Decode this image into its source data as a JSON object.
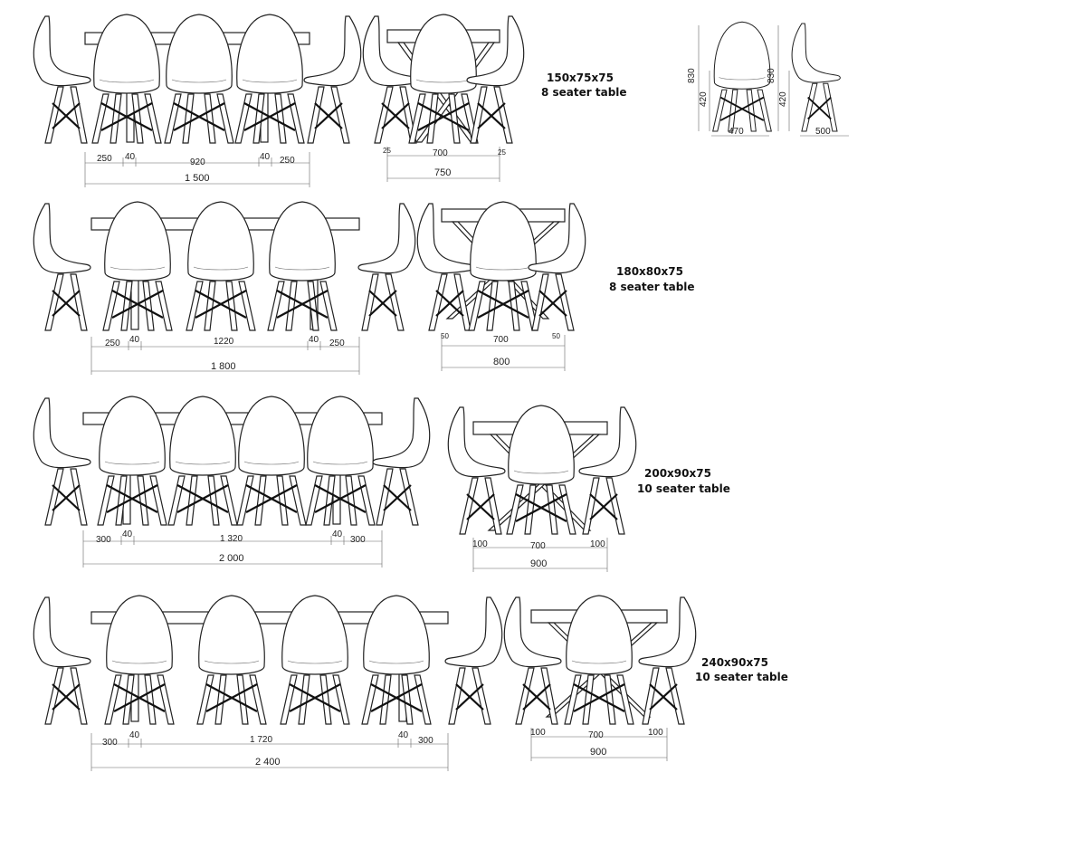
{
  "captions": [
    {
      "size": "150x75x75",
      "seats": "8 seater table"
    },
    {
      "size": "180x80x75",
      "seats": "8 seater table"
    },
    {
      "size": "200x90x75",
      "seats": "10 seater table"
    },
    {
      "size": "240x90x75",
      "seats": "10 seater table"
    }
  ],
  "chair_dims": {
    "height": "830",
    "seat_height": "420",
    "width_front": "470",
    "depth_side": "500"
  },
  "rows": [
    {
      "front": {
        "seg": [
          "250",
          "40",
          "920",
          "40",
          "250"
        ],
        "total": "1 500"
      },
      "side": {
        "seg": [
          "25",
          "700",
          "25"
        ],
        "total": "750"
      }
    },
    {
      "front": {
        "seg": [
          "250",
          "40",
          "1220",
          "40",
          "250"
        ],
        "total": "1 800"
      },
      "side": {
        "seg": [
          "50",
          "700",
          "50"
        ],
        "total": "800"
      }
    },
    {
      "front": {
        "seg": [
          "300",
          "40",
          "1 320",
          "40",
          "300"
        ],
        "total": "2 000"
      },
      "side": {
        "seg": [
          "100",
          "700",
          "100"
        ],
        "total": "900"
      }
    },
    {
      "front": {
        "seg": [
          "300",
          "40",
          "1 720",
          "40",
          "300"
        ],
        "total": "2 400"
      },
      "side": {
        "seg": [
          "100",
          "700",
          "100"
        ],
        "total": "900"
      }
    }
  ]
}
